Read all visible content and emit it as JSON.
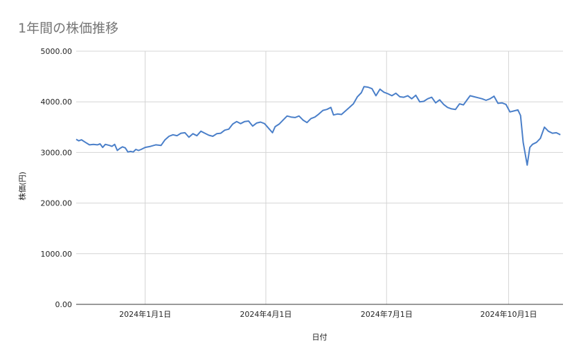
{
  "chart_data": {
    "type": "line",
    "title": "1年間の株価推移",
    "xlabel": "日付",
    "ylabel": "株価(円)",
    "ylim": [
      0,
      5000
    ],
    "y_ticks": [
      "0.00",
      "1000.00",
      "2000.00",
      "3000.00",
      "4000.00",
      "5000.00"
    ],
    "x_ticks": [
      {
        "date": "2024-01-01",
        "label": "2024年1月1日"
      },
      {
        "date": "2024-04-01",
        "label": "2024年4月1日"
      },
      {
        "date": "2024-07-01",
        "label": "2024年7月1日"
      },
      {
        "date": "2024-10-01",
        "label": "2024年10月1日"
      }
    ],
    "xlim": [
      "2023-11-10",
      "2024-11-11"
    ],
    "grid": true,
    "legend": "none",
    "colors": {
      "line": "#4a7fc9",
      "grid": "#d4d4d4",
      "axis": "#333333",
      "title": "#757575"
    },
    "series": [
      {
        "values": [
          [
            "2023-11-10",
            3260
          ],
          [
            "2023-11-12",
            3230
          ],
          [
            "2023-11-14",
            3250
          ],
          [
            "2023-11-17",
            3200
          ],
          [
            "2023-11-20",
            3150
          ],
          [
            "2023-11-23",
            3160
          ],
          [
            "2023-11-26",
            3150
          ],
          [
            "2023-11-28",
            3170
          ],
          [
            "2023-11-30",
            3100
          ],
          [
            "2023-12-02",
            3160
          ],
          [
            "2023-12-05",
            3140
          ],
          [
            "2023-12-07",
            3120
          ],
          [
            "2023-12-09",
            3160
          ],
          [
            "2023-12-11",
            3040
          ],
          [
            "2023-12-13",
            3080
          ],
          [
            "2023-12-15",
            3110
          ],
          [
            "2023-12-17",
            3090
          ],
          [
            "2023-12-19",
            3010
          ],
          [
            "2023-12-21",
            3020
          ],
          [
            "2023-12-23",
            3010
          ],
          [
            "2023-12-25",
            3060
          ],
          [
            "2023-12-27",
            3040
          ],
          [
            "2023-12-29",
            3060
          ],
          [
            "2024-01-01",
            3100
          ],
          [
            "2024-01-05",
            3120
          ],
          [
            "2024-01-09",
            3150
          ],
          [
            "2024-01-13",
            3140
          ],
          [
            "2024-01-16",
            3250
          ],
          [
            "2024-01-19",
            3320
          ],
          [
            "2024-01-22",
            3350
          ],
          [
            "2024-01-25",
            3330
          ],
          [
            "2024-01-28",
            3380
          ],
          [
            "2024-01-31",
            3390
          ],
          [
            "2024-02-03",
            3300
          ],
          [
            "2024-02-06",
            3370
          ],
          [
            "2024-02-09",
            3330
          ],
          [
            "2024-02-12",
            3420
          ],
          [
            "2024-02-15",
            3380
          ],
          [
            "2024-02-18",
            3340
          ],
          [
            "2024-02-21",
            3320
          ],
          [
            "2024-02-24",
            3370
          ],
          [
            "2024-02-27",
            3380
          ],
          [
            "2024-03-01",
            3440
          ],
          [
            "2024-03-04",
            3460
          ],
          [
            "2024-03-07",
            3560
          ],
          [
            "2024-03-10",
            3610
          ],
          [
            "2024-03-13",
            3570
          ],
          [
            "2024-03-16",
            3610
          ],
          [
            "2024-03-19",
            3620
          ],
          [
            "2024-03-22",
            3520
          ],
          [
            "2024-03-25",
            3580
          ],
          [
            "2024-03-28",
            3600
          ],
          [
            "2024-03-31",
            3570
          ],
          [
            "2024-04-03",
            3480
          ],
          [
            "2024-04-06",
            3390
          ],
          [
            "2024-04-08",
            3510
          ],
          [
            "2024-04-11",
            3560
          ],
          [
            "2024-04-14",
            3640
          ],
          [
            "2024-04-17",
            3720
          ],
          [
            "2024-04-20",
            3700
          ],
          [
            "2024-04-23",
            3690
          ],
          [
            "2024-04-26",
            3720
          ],
          [
            "2024-04-29",
            3640
          ],
          [
            "2024-05-02",
            3590
          ],
          [
            "2024-05-05",
            3670
          ],
          [
            "2024-05-08",
            3700
          ],
          [
            "2024-05-11",
            3760
          ],
          [
            "2024-05-14",
            3830
          ],
          [
            "2024-05-17",
            3850
          ],
          [
            "2024-05-20",
            3890
          ],
          [
            "2024-05-22",
            3740
          ],
          [
            "2024-05-25",
            3760
          ],
          [
            "2024-05-28",
            3750
          ],
          [
            "2024-05-31",
            3820
          ],
          [
            "2024-06-03",
            3890
          ],
          [
            "2024-06-06",
            3960
          ],
          [
            "2024-06-09",
            4100
          ],
          [
            "2024-06-12",
            4180
          ],
          [
            "2024-06-14",
            4300
          ],
          [
            "2024-06-17",
            4290
          ],
          [
            "2024-06-20",
            4260
          ],
          [
            "2024-06-23",
            4120
          ],
          [
            "2024-06-26",
            4250
          ],
          [
            "2024-06-29",
            4190
          ],
          [
            "2024-07-02",
            4160
          ],
          [
            "2024-07-05",
            4120
          ],
          [
            "2024-07-08",
            4170
          ],
          [
            "2024-07-11",
            4100
          ],
          [
            "2024-07-14",
            4090
          ],
          [
            "2024-07-17",
            4120
          ],
          [
            "2024-07-20",
            4060
          ],
          [
            "2024-07-23",
            4130
          ],
          [
            "2024-07-26",
            4000
          ],
          [
            "2024-07-29",
            4010
          ],
          [
            "2024-08-01",
            4060
          ],
          [
            "2024-08-04",
            4090
          ],
          [
            "2024-08-07",
            3980
          ],
          [
            "2024-08-10",
            4040
          ],
          [
            "2024-08-13",
            3950
          ],
          [
            "2024-08-16",
            3890
          ],
          [
            "2024-08-19",
            3860
          ],
          [
            "2024-08-22",
            3850
          ],
          [
            "2024-08-25",
            3960
          ],
          [
            "2024-08-28",
            3940
          ],
          [
            "2024-08-31",
            4050
          ],
          [
            "2024-09-02",
            4120
          ],
          [
            "2024-09-05",
            4100
          ],
          [
            "2024-09-08",
            4080
          ],
          [
            "2024-09-11",
            4060
          ],
          [
            "2024-09-14",
            4030
          ],
          [
            "2024-09-17",
            4060
          ],
          [
            "2024-09-20",
            4110
          ],
          [
            "2024-09-23",
            3970
          ],
          [
            "2024-09-26",
            3980
          ],
          [
            "2024-09-29",
            3950
          ],
          [
            "2024-10-02",
            3800
          ],
          [
            "2024-10-05",
            3820
          ],
          [
            "2024-10-08",
            3840
          ],
          [
            "2024-10-10",
            3730
          ],
          [
            "2024-10-12",
            3200
          ],
          [
            "2024-10-15",
            2750
          ],
          [
            "2024-10-17",
            3100
          ],
          [
            "2024-10-19",
            3160
          ],
          [
            "2024-10-22",
            3200
          ],
          [
            "2024-10-25",
            3280
          ],
          [
            "2024-10-28",
            3500
          ],
          [
            "2024-10-31",
            3420
          ],
          [
            "2024-11-03",
            3380
          ],
          [
            "2024-11-06",
            3390
          ],
          [
            "2024-11-09",
            3350
          ]
        ]
      }
    ]
  }
}
